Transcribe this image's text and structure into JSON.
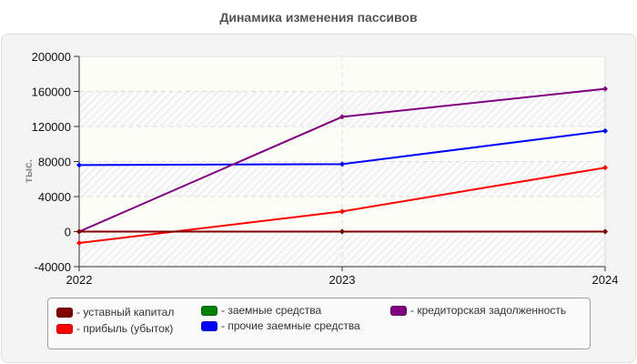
{
  "chart_data": {
    "type": "line",
    "title": "Динамика изменения пассивов",
    "xlabel": "",
    "ylabel": "тыс.",
    "x": [
      "2022",
      "2023",
      "2024"
    ],
    "ylim": [
      -40000,
      200000
    ],
    "yticks": [
      "200000",
      "160000",
      "120000",
      "80000",
      "40000",
      "0",
      "-40000"
    ],
    "grid": true,
    "legend_position": "bottom",
    "series": [
      {
        "name": "уставный капитал",
        "color": "#800000",
        "values": [
          0,
          0,
          0
        ]
      },
      {
        "name": "прибыль (убыток)",
        "color": "#ff0000",
        "values": [
          -13000,
          23000,
          73000
        ]
      },
      {
        "name": "заемные средства",
        "color": "#008000",
        "values": [
          0,
          0,
          0
        ]
      },
      {
        "name": "прочие заемные средства",
        "color": "#0000ff",
        "values": [
          76000,
          77000,
          115000
        ]
      },
      {
        "name": "кредиторская задолженность",
        "color": "#800080",
        "values": [
          0,
          131000,
          163000
        ]
      }
    ]
  },
  "legend": {
    "items": [
      {
        "label": "- уставный капитал",
        "color": "#800000"
      },
      {
        "label": "- прибыль (убыток)",
        "color": "#ff0000"
      },
      {
        "label": "- заемные средства",
        "color": "#008000"
      },
      {
        "label": "- прочие заемные средства",
        "color": "#0000ff"
      },
      {
        "label": "- кредиторская задолженность",
        "color": "#800080"
      }
    ]
  }
}
